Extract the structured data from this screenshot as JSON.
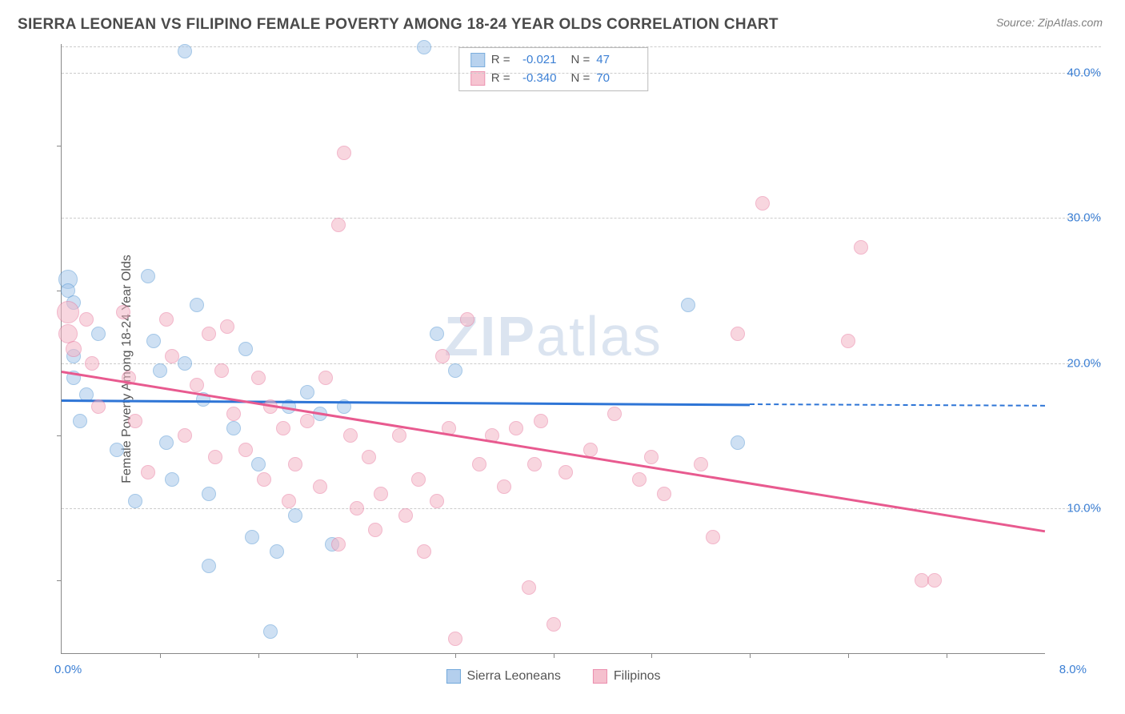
{
  "header": {
    "title": "SIERRA LEONEAN VS FILIPINO FEMALE POVERTY AMONG 18-24 YEAR OLDS CORRELATION CHART",
    "source": "Source: ZipAtlas.com"
  },
  "chart": {
    "type": "scatter",
    "ylabel": "Female Poverty Among 18-24 Year Olds",
    "watermark": {
      "bold": "ZIP",
      "rest": "atlas"
    },
    "xlim": [
      0,
      8
    ],
    "ylim": [
      0,
      42
    ],
    "x_min_label": "0.0%",
    "x_max_label": "8.0%",
    "y_ticks": [
      {
        "v": 10,
        "label": "10.0%"
      },
      {
        "v": 20,
        "label": "20.0%"
      },
      {
        "v": 30,
        "label": "30.0%"
      },
      {
        "v": 40,
        "label": "40.0%"
      }
    ],
    "x_tick_positions": [
      0.8,
      1.6,
      2.4,
      3.2,
      4.0,
      4.8,
      5.6,
      6.4,
      7.2
    ],
    "y_tick_positions": [
      5,
      15,
      25,
      35
    ],
    "background_color": "#ffffff",
    "grid_color": "#cccccc",
    "series": [
      {
        "key": "sierra",
        "name": "Sierra Leoneans",
        "fill": "#a7c7ea",
        "stroke": "#5b9bd5",
        "fill_opacity": 0.55,
        "marker_radius": 9,
        "R_label": "R =",
        "R_value": "-0.021",
        "N_label": "N =",
        "N_value": "47",
        "regression": {
          "x1": 0,
          "y1": 17.5,
          "x2": 5.6,
          "y2": 17.2,
          "color": "#2e75d6",
          "width": 2.5,
          "dash_ext_to": 8,
          "dash_y": 17.1
        },
        "points": [
          {
            "x": 0.05,
            "y": 25.8,
            "r": 12
          },
          {
            "x": 0.05,
            "y": 25.0,
            "r": 9
          },
          {
            "x": 0.1,
            "y": 24.2,
            "r": 9
          },
          {
            "x": 0.1,
            "y": 20.5,
            "r": 9
          },
          {
            "x": 0.1,
            "y": 19.0,
            "r": 9
          },
          {
            "x": 0.2,
            "y": 17.8,
            "r": 9
          },
          {
            "x": 0.15,
            "y": 16.0,
            "r": 9
          },
          {
            "x": 0.3,
            "y": 22.0,
            "r": 9
          },
          {
            "x": 0.45,
            "y": 14.0,
            "r": 9
          },
          {
            "x": 0.6,
            "y": 10.5,
            "r": 9
          },
          {
            "x": 0.7,
            "y": 26.0,
            "r": 9
          },
          {
            "x": 0.75,
            "y": 21.5,
            "r": 9
          },
          {
            "x": 0.8,
            "y": 19.5,
            "r": 9
          },
          {
            "x": 0.85,
            "y": 14.5,
            "r": 9
          },
          {
            "x": 0.9,
            "y": 12.0,
            "r": 9
          },
          {
            "x": 1.0,
            "y": 41.5,
            "r": 9
          },
          {
            "x": 1.0,
            "y": 20.0,
            "r": 9
          },
          {
            "x": 1.1,
            "y": 24.0,
            "r": 9
          },
          {
            "x": 1.15,
            "y": 17.5,
            "r": 9
          },
          {
            "x": 1.2,
            "y": 11.0,
            "r": 9
          },
          {
            "x": 1.2,
            "y": 6.0,
            "r": 9
          },
          {
            "x": 1.4,
            "y": 15.5,
            "r": 9
          },
          {
            "x": 1.5,
            "y": 21.0,
            "r": 9
          },
          {
            "x": 1.55,
            "y": 8.0,
            "r": 9
          },
          {
            "x": 1.6,
            "y": 13.0,
            "r": 9
          },
          {
            "x": 1.7,
            "y": 1.5,
            "r": 9
          },
          {
            "x": 1.75,
            "y": 7.0,
            "r": 9
          },
          {
            "x": 1.85,
            "y": 17.0,
            "r": 9
          },
          {
            "x": 1.9,
            "y": 9.5,
            "r": 9
          },
          {
            "x": 2.0,
            "y": 18.0,
            "r": 9
          },
          {
            "x": 2.1,
            "y": 16.5,
            "r": 9
          },
          {
            "x": 2.2,
            "y": 7.5,
            "r": 9
          },
          {
            "x": 2.3,
            "y": 17.0,
            "r": 9
          },
          {
            "x": 2.95,
            "y": 41.8,
            "r": 9
          },
          {
            "x": 3.05,
            "y": 22.0,
            "r": 9
          },
          {
            "x": 3.2,
            "y": 19.5,
            "r": 9
          },
          {
            "x": 5.1,
            "y": 24.0,
            "r": 9
          },
          {
            "x": 5.5,
            "y": 14.5,
            "r": 9
          }
        ]
      },
      {
        "key": "filipino",
        "name": "Filipinos",
        "fill": "#f4b6c6",
        "stroke": "#e87ba0",
        "fill_opacity": 0.55,
        "marker_radius": 9,
        "R_label": "R =",
        "R_value": "-0.340",
        "N_label": "N =",
        "N_value": "70",
        "regression": {
          "x1": 0,
          "y1": 19.5,
          "x2": 8,
          "y2": 8.5,
          "color": "#e85a8f",
          "width": 2.5
        },
        "points": [
          {
            "x": 0.05,
            "y": 23.5,
            "r": 14
          },
          {
            "x": 0.05,
            "y": 22.0,
            "r": 12
          },
          {
            "x": 0.1,
            "y": 21.0,
            "r": 10
          },
          {
            "x": 0.2,
            "y": 23.0,
            "r": 9
          },
          {
            "x": 0.25,
            "y": 20.0,
            "r": 9
          },
          {
            "x": 0.3,
            "y": 17.0,
            "r": 9
          },
          {
            "x": 0.5,
            "y": 23.5,
            "r": 9
          },
          {
            "x": 0.55,
            "y": 19.0,
            "r": 9
          },
          {
            "x": 0.6,
            "y": 16.0,
            "r": 9
          },
          {
            "x": 0.7,
            "y": 12.5,
            "r": 9
          },
          {
            "x": 0.85,
            "y": 23.0,
            "r": 9
          },
          {
            "x": 0.9,
            "y": 20.5,
            "r": 9
          },
          {
            "x": 1.0,
            "y": 15.0,
            "r": 9
          },
          {
            "x": 1.1,
            "y": 18.5,
            "r": 9
          },
          {
            "x": 1.2,
            "y": 22.0,
            "r": 9
          },
          {
            "x": 1.25,
            "y": 13.5,
            "r": 9
          },
          {
            "x": 1.3,
            "y": 19.5,
            "r": 9
          },
          {
            "x": 1.35,
            "y": 22.5,
            "r": 9
          },
          {
            "x": 1.4,
            "y": 16.5,
            "r": 9
          },
          {
            "x": 1.5,
            "y": 14.0,
            "r": 9
          },
          {
            "x": 1.6,
            "y": 19.0,
            "r": 9
          },
          {
            "x": 1.65,
            "y": 12.0,
            "r": 9
          },
          {
            "x": 1.7,
            "y": 17.0,
            "r": 9
          },
          {
            "x": 1.8,
            "y": 15.5,
            "r": 9
          },
          {
            "x": 1.85,
            "y": 10.5,
            "r": 9
          },
          {
            "x": 1.9,
            "y": 13.0,
            "r": 9
          },
          {
            "x": 2.0,
            "y": 16.0,
            "r": 9
          },
          {
            "x": 2.1,
            "y": 11.5,
            "r": 9
          },
          {
            "x": 2.15,
            "y": 19.0,
            "r": 9
          },
          {
            "x": 2.25,
            "y": 29.5,
            "r": 9
          },
          {
            "x": 2.25,
            "y": 7.5,
            "r": 9
          },
          {
            "x": 2.3,
            "y": 34.5,
            "r": 9
          },
          {
            "x": 2.35,
            "y": 15.0,
            "r": 9
          },
          {
            "x": 2.4,
            "y": 10.0,
            "r": 9
          },
          {
            "x": 2.5,
            "y": 13.5,
            "r": 9
          },
          {
            "x": 2.55,
            "y": 8.5,
            "r": 9
          },
          {
            "x": 2.6,
            "y": 11.0,
            "r": 9
          },
          {
            "x": 2.75,
            "y": 15.0,
            "r": 9
          },
          {
            "x": 2.8,
            "y": 9.5,
            "r": 9
          },
          {
            "x": 2.9,
            "y": 12.0,
            "r": 9
          },
          {
            "x": 2.95,
            "y": 7.0,
            "r": 9
          },
          {
            "x": 3.05,
            "y": 10.5,
            "r": 9
          },
          {
            "x": 3.1,
            "y": 20.5,
            "r": 9
          },
          {
            "x": 3.15,
            "y": 15.5,
            "r": 9
          },
          {
            "x": 3.2,
            "y": 1.0,
            "r": 9
          },
          {
            "x": 3.3,
            "y": 23.0,
            "r": 9
          },
          {
            "x": 3.4,
            "y": 13.0,
            "r": 9
          },
          {
            "x": 3.5,
            "y": 15.0,
            "r": 9
          },
          {
            "x": 3.6,
            "y": 11.5,
            "r": 9
          },
          {
            "x": 3.7,
            "y": 15.5,
            "r": 9
          },
          {
            "x": 3.8,
            "y": 4.5,
            "r": 9
          },
          {
            "x": 3.85,
            "y": 13.0,
            "r": 9
          },
          {
            "x": 3.9,
            "y": 16.0,
            "r": 9
          },
          {
            "x": 4.0,
            "y": 2.0,
            "r": 9
          },
          {
            "x": 4.1,
            "y": 12.5,
            "r": 9
          },
          {
            "x": 4.3,
            "y": 14.0,
            "r": 9
          },
          {
            "x": 4.5,
            "y": 16.5,
            "r": 9
          },
          {
            "x": 4.7,
            "y": 12.0,
            "r": 9
          },
          {
            "x": 4.8,
            "y": 13.5,
            "r": 9
          },
          {
            "x": 4.9,
            "y": 11.0,
            "r": 9
          },
          {
            "x": 5.2,
            "y": 13.0,
            "r": 9
          },
          {
            "x": 5.3,
            "y": 8.0,
            "r": 9
          },
          {
            "x": 5.5,
            "y": 22.0,
            "r": 9
          },
          {
            "x": 5.7,
            "y": 31.0,
            "r": 9
          },
          {
            "x": 6.4,
            "y": 21.5,
            "r": 9
          },
          {
            "x": 6.5,
            "y": 28.0,
            "r": 9
          },
          {
            "x": 7.0,
            "y": 5.0,
            "r": 9
          },
          {
            "x": 7.1,
            "y": 5.0,
            "r": 9
          }
        ]
      }
    ],
    "bottom_legend": [
      {
        "swatch_fill": "#a7c7ea",
        "swatch_stroke": "#5b9bd5",
        "label": "Sierra Leoneans"
      },
      {
        "swatch_fill": "#f4b6c6",
        "swatch_stroke": "#e87ba0",
        "label": "Filipinos"
      }
    ]
  }
}
